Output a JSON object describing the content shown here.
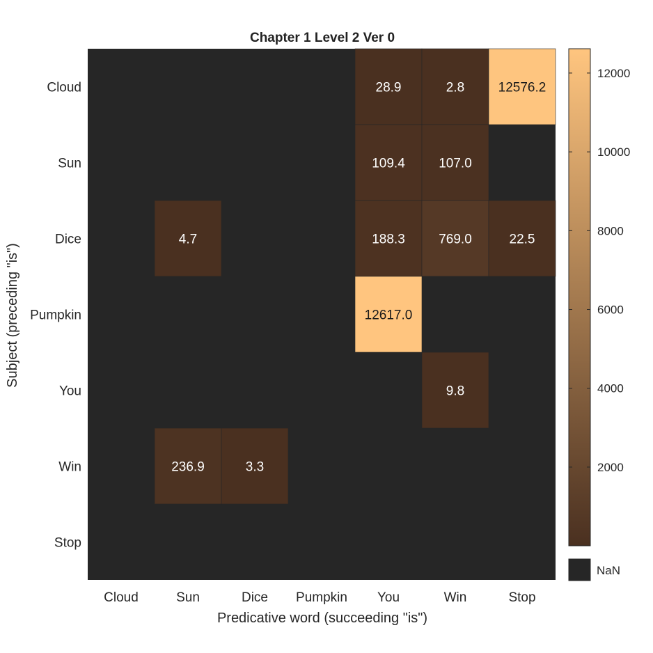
{
  "chart_data": {
    "type": "heatmap",
    "title": "Chapter 1 Level 2 Ver 0",
    "xlabel": "Predicative word (succeeding \"is\")",
    "ylabel": "Subject (preceding \"is\")",
    "x_categories": [
      "Cloud",
      "Sun",
      "Dice",
      "Pumpkin",
      "You",
      "Win",
      "Stop"
    ],
    "y_categories": [
      "Cloud",
      "Sun",
      "Dice",
      "Pumpkin",
      "You",
      "Win",
      "Stop"
    ],
    "values": [
      [
        null,
        null,
        null,
        null,
        28.9,
        2.8,
        12576.2
      ],
      [
        null,
        null,
        null,
        null,
        109.4,
        107.0,
        null
      ],
      [
        null,
        4.7,
        null,
        null,
        188.3,
        769.0,
        22.5
      ],
      [
        null,
        null,
        null,
        null,
        12617.0,
        null,
        null
      ],
      [
        null,
        null,
        null,
        null,
        null,
        9.8,
        null
      ],
      [
        null,
        236.9,
        3.3,
        null,
        null,
        null,
        null
      ],
      [
        null,
        null,
        null,
        null,
        null,
        null,
        null
      ]
    ],
    "value_labels": [
      [
        "",
        "",
        "",
        "",
        "28.9",
        "2.8",
        "12576.2"
      ],
      [
        "",
        "",
        "",
        "",
        "109.4",
        "107.0",
        ""
      ],
      [
        "",
        "4.7",
        "",
        "",
        "188.3",
        "769.0",
        "22.5"
      ],
      [
        "",
        "",
        "",
        "",
        "12617.0",
        "",
        ""
      ],
      [
        "",
        "",
        "",
        "",
        "",
        "9.8",
        ""
      ],
      [
        "",
        "236.9",
        "3.3",
        "",
        "",
        "",
        ""
      ],
      [
        "",
        "",
        "",
        "",
        "",
        "",
        ""
      ]
    ],
    "colorbar": {
      "ticks": [
        2000,
        4000,
        6000,
        8000,
        10000,
        12000
      ],
      "range": [
        2.8,
        12617.0
      ],
      "colors": {
        "low": "#4a3020",
        "high": "#ffc57f"
      },
      "nan_label": "NaN",
      "nan_color": "#262626"
    }
  }
}
